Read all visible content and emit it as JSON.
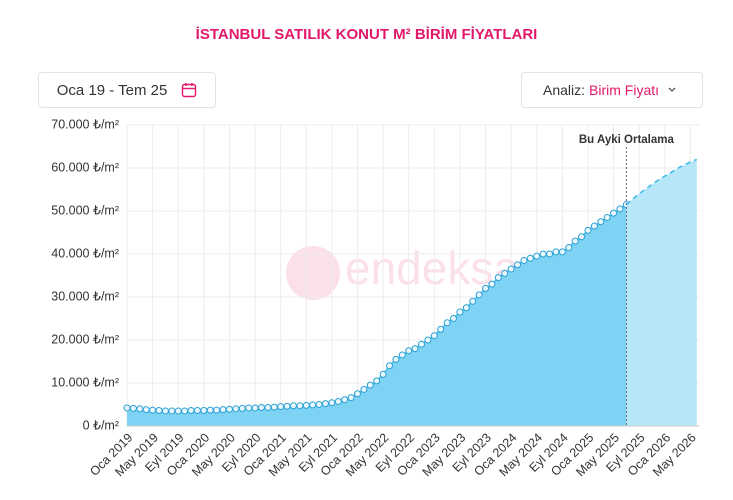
{
  "header": {
    "title": "İSTANBUL SATILIK KONUT M² BİRİM FİYATLARI"
  },
  "controls": {
    "date_range": "Oca 19 - Tem 25",
    "analysis_label": "Analiz:",
    "analysis_value": "Birim Fiyatı"
  },
  "chart_data": {
    "type": "area",
    "categories": [
      "Oca 2019",
      null,
      null,
      null,
      "May 2019",
      null,
      null,
      null,
      "Eyl 2019",
      null,
      null,
      null,
      "Oca 2020",
      null,
      null,
      null,
      "May 2020",
      null,
      null,
      null,
      "Eyl 2020",
      null,
      null,
      null,
      "Oca 2021",
      null,
      null,
      null,
      "May 2021",
      null,
      null,
      null,
      "Eyl 2021",
      null,
      null,
      null,
      "Oca 2022",
      null,
      null,
      null,
      "May 2022",
      null,
      null,
      null,
      "Eyl 2022",
      null,
      null,
      null,
      "Oca 2023",
      null,
      null,
      null,
      "May 2023",
      null,
      null,
      null,
      "Eyl 2023",
      null,
      null,
      null,
      "Oca 2024",
      null,
      null,
      null,
      "May 2024",
      null,
      null,
      null,
      "Eyl 2024",
      null,
      null,
      null,
      "Oca 2025",
      null,
      null,
      null,
      "May 2025",
      null,
      null,
      null,
      "Eyl 2025",
      null,
      null,
      null,
      "Oca 2026",
      null,
      null,
      null,
      "May 2026",
      null
    ],
    "series": [
      {
        "color": "#3fb8ea",
        "fill": "#7ed3f4",
        "markers": true,
        "dashed": false,
        "values": [
          4200,
          4100,
          4000,
          3800,
          3700,
          3600,
          3500,
          3500,
          3500,
          3500,
          3600,
          3600,
          3600,
          3700,
          3700,
          3800,
          3900,
          4000,
          4100,
          4200,
          4200,
          4300,
          4300,
          4400,
          4500,
          4600,
          4700,
          4700,
          4800,
          4900,
          5000,
          5200,
          5400,
          5700,
          6100,
          6600,
          7500,
          8500,
          9500,
          10500,
          12000,
          14000,
          15500,
          16500,
          17500,
          18000,
          19000,
          20000,
          21000,
          22500,
          24000,
          25000,
          26500,
          27500,
          29000,
          30500,
          32000,
          33000,
          34500,
          35500,
          36500,
          37500,
          38500,
          39000,
          39500,
          40000,
          40000,
          40500,
          40500,
          41500,
          43000,
          44000,
          45500,
          46500,
          47500,
          48500,
          49500,
          50500,
          51500,
          null,
          null,
          null,
          null,
          null,
          null,
          null,
          null,
          null,
          null,
          null
        ]
      },
      {
        "color": "#3fb8ea",
        "fill": "#b5e7f9",
        "markers": false,
        "dashed": true,
        "values": [
          null,
          null,
          null,
          null,
          null,
          null,
          null,
          null,
          null,
          null,
          null,
          null,
          null,
          null,
          null,
          null,
          null,
          null,
          null,
          null,
          null,
          null,
          null,
          null,
          null,
          null,
          null,
          null,
          null,
          null,
          null,
          null,
          null,
          null,
          null,
          null,
          null,
          null,
          null,
          null,
          null,
          null,
          null,
          null,
          null,
          null,
          null,
          null,
          null,
          null,
          null,
          null,
          null,
          null,
          null,
          null,
          null,
          null,
          null,
          null,
          null,
          null,
          null,
          null,
          null,
          null,
          null,
          null,
          null,
          null,
          null,
          null,
          null,
          null,
          null,
          null,
          null,
          null,
          51500,
          52800,
          54000,
          55100,
          56200,
          57200,
          58100,
          59000,
          59900,
          60700,
          61400,
          62000
        ]
      }
    ],
    "ylim": [
      0,
      70000
    ],
    "yticks": [
      {
        "value": 0,
        "label": "0 ₺/m²"
      },
      {
        "value": 10000,
        "label": "10.000 ₺/m²"
      },
      {
        "value": 20000,
        "label": "20.000 ₺/m²"
      },
      {
        "value": 30000,
        "label": "30.000 ₺/m²"
      },
      {
        "value": 40000,
        "label": "40.000 ₺/m²"
      },
      {
        "value": 50000,
        "label": "50.000 ₺/m²"
      },
      {
        "value": 60000,
        "label": "60.000 ₺/m²"
      },
      {
        "value": 70000,
        "label": "70.000 ₺/m²"
      }
    ],
    "grid": true,
    "annotations": [
      {
        "text": "Bu Ayki Ortalama"
      }
    ],
    "watermark": "endeksa"
  }
}
